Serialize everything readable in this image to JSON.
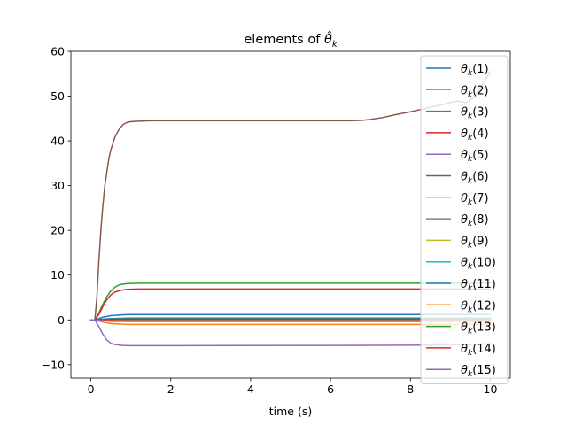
{
  "chart_data": {
    "type": "line",
    "title": "elements of θ̂",
    "title_main": "elements of ",
    "title_symbol": "θ̂",
    "title_subscript": "k",
    "xlabel": "time (s)",
    "ylabel": "",
    "xlim": [
      -0.5,
      10.5
    ],
    "ylim": [
      -13,
      60
    ],
    "xticks": [
      0,
      2,
      4,
      6,
      8,
      10
    ],
    "yticks": [
      -10,
      0,
      10,
      20,
      30,
      40,
      50,
      60
    ],
    "grid": false,
    "legend": "right",
    "series": [
      {
        "name": "θk(1)",
        "symbol": "θ",
        "sub": "k",
        "index": "(1)",
        "color": "#1f77b4",
        "x": [
          0,
          0.1,
          0.3,
          0.5,
          0.8,
          1.0,
          1.5,
          2,
          10
        ],
        "y": [
          0,
          0,
          0.6,
          0.95,
          1.15,
          1.2,
          1.2,
          1.2,
          1.2
        ]
      },
      {
        "name": "θk(2)",
        "symbol": "θ",
        "sub": "k",
        "index": "(2)",
        "color": "#ff7f0e",
        "x": [
          0,
          0.1,
          0.3,
          0.5,
          0.8,
          1.0,
          1.5,
          10
        ],
        "y": [
          0,
          0,
          -0.5,
          -0.8,
          -0.95,
          -1.0,
          -1.0,
          -1.0
        ]
      },
      {
        "name": "θk(3)",
        "symbol": "θ",
        "sub": "k",
        "index": "(3)",
        "color": "#2ca02c",
        "x": [
          0,
          0.1,
          0.2,
          0.3,
          0.4,
          0.5,
          0.6,
          0.7,
          0.8,
          0.9,
          1.0,
          1.2,
          1.5,
          2,
          10
        ],
        "y": [
          0,
          0,
          1.5,
          3.5,
          5.2,
          6.5,
          7.3,
          7.8,
          8.0,
          8.1,
          8.15,
          8.2,
          8.2,
          8.2,
          8.2
        ]
      },
      {
        "name": "θk(4)",
        "symbol": "θ",
        "sub": "k",
        "index": "(4)",
        "color": "#d62728",
        "x": [
          0,
          0.1,
          0.2,
          0.3,
          0.4,
          0.5,
          0.6,
          0.7,
          0.8,
          0.9,
          1.0,
          1.2,
          1.5,
          2,
          8,
          10
        ],
        "y": [
          0,
          0,
          1.2,
          3.0,
          4.5,
          5.6,
          6.2,
          6.5,
          6.7,
          6.8,
          6.85,
          6.9,
          6.9,
          6.9,
          6.9,
          6.85
        ]
      },
      {
        "name": "θk(5)",
        "symbol": "θ",
        "sub": "k",
        "index": "(5)",
        "color": "#9467bd",
        "x": [
          0,
          0.1,
          0.2,
          0.3,
          0.4,
          0.5,
          0.6,
          0.8,
          1.0,
          1.5,
          2,
          6,
          8,
          9,
          9.5,
          10
        ],
        "y": [
          0,
          0,
          -1.5,
          -3.2,
          -4.5,
          -5.2,
          -5.5,
          -5.7,
          -5.75,
          -5.75,
          -5.75,
          -5.7,
          -5.65,
          -5.6,
          -5.5,
          -5.3
        ]
      },
      {
        "name": "θk(6)",
        "symbol": "θ",
        "sub": "k",
        "index": "(6)",
        "color": "#8c564b",
        "x": [
          0,
          0.1,
          0.15,
          0.2,
          0.25,
          0.3,
          0.35,
          0.4,
          0.45,
          0.5,
          0.6,
          0.7,
          0.8,
          0.9,
          1.0,
          1.2,
          1.5,
          2,
          3,
          4,
          5,
          6,
          6.5,
          6.8,
          7.0,
          7.3,
          7.6,
          8.0,
          8.4,
          8.8,
          9.0,
          9.2,
          9.4,
          9.6,
          9.8,
          10.0
        ],
        "y": [
          0,
          0,
          5,
          13,
          20,
          25.5,
          30,
          33,
          36,
          38,
          40.8,
          42.5,
          43.6,
          44.1,
          44.3,
          44.4,
          44.5,
          44.5,
          44.5,
          44.5,
          44.5,
          44.5,
          44.5,
          44.6,
          44.8,
          45.2,
          45.8,
          46.5,
          47.3,
          48.1,
          48.6,
          48.9,
          48.5,
          49.8,
          52.5,
          55.5
        ]
      },
      {
        "name": "θk(7)",
        "symbol": "θ",
        "sub": "k",
        "index": "(7)",
        "color": "#e377c2",
        "x": [
          0,
          0.1,
          0.5,
          1.0,
          10
        ],
        "y": [
          0,
          0,
          0.2,
          0.3,
          0.3
        ]
      },
      {
        "name": "θk(8)",
        "symbol": "θ",
        "sub": "k",
        "index": "(8)",
        "color": "#7f7f7f",
        "x": [
          0,
          0.1,
          0.5,
          1.0,
          10
        ],
        "y": [
          0,
          0,
          -0.1,
          -0.15,
          -0.15
        ]
      },
      {
        "name": "θk(9)",
        "symbol": "θ",
        "sub": "k",
        "index": "(9)",
        "color": "#bcbd22",
        "x": [
          0,
          0.1,
          0.5,
          1.0,
          10
        ],
        "y": [
          0,
          0,
          0.1,
          0.15,
          0.15
        ]
      },
      {
        "name": "θk(10)",
        "symbol": "θ",
        "sub": "k",
        "index": "(10)",
        "color": "#17becf",
        "x": [
          0,
          0.1,
          0.5,
          1.0,
          10
        ],
        "y": [
          0,
          0,
          0.05,
          0.08,
          0.08
        ]
      },
      {
        "name": "θk(11)",
        "symbol": "θ",
        "sub": "k",
        "index": "(11)",
        "color": "#1f77b4",
        "x": [
          0,
          0.1,
          0.5,
          1.0,
          10
        ],
        "y": [
          0,
          0,
          0.3,
          0.4,
          0.4
        ]
      },
      {
        "name": "θk(12)",
        "symbol": "θ",
        "sub": "k",
        "index": "(12)",
        "color": "#ff7f0e",
        "x": [
          0,
          0.1,
          0.5,
          1.0,
          10
        ],
        "y": [
          0,
          0,
          -0.2,
          -0.25,
          -0.25
        ]
      },
      {
        "name": "θk(13)",
        "symbol": "θ",
        "sub": "k",
        "index": "(13)",
        "color": "#2ca02c",
        "x": [
          0,
          0.1,
          0.5,
          1.0,
          10
        ],
        "y": [
          0,
          0,
          0.15,
          0.2,
          0.2
        ]
      },
      {
        "name": "θk(14)",
        "symbol": "θ",
        "sub": "k",
        "index": "(14)",
        "color": "#d62728",
        "x": [
          0,
          0.1,
          0.5,
          1.0,
          10
        ],
        "y": [
          0,
          0,
          0.1,
          0.12,
          0.12
        ]
      },
      {
        "name": "θk(15)",
        "symbol": "θ",
        "sub": "k",
        "index": "(15)",
        "color": "#9467bd",
        "x": [
          0,
          0.1,
          0.5,
          1.0,
          10
        ],
        "y": [
          0,
          0,
          -0.3,
          -0.35,
          -0.35
        ]
      }
    ]
  }
}
